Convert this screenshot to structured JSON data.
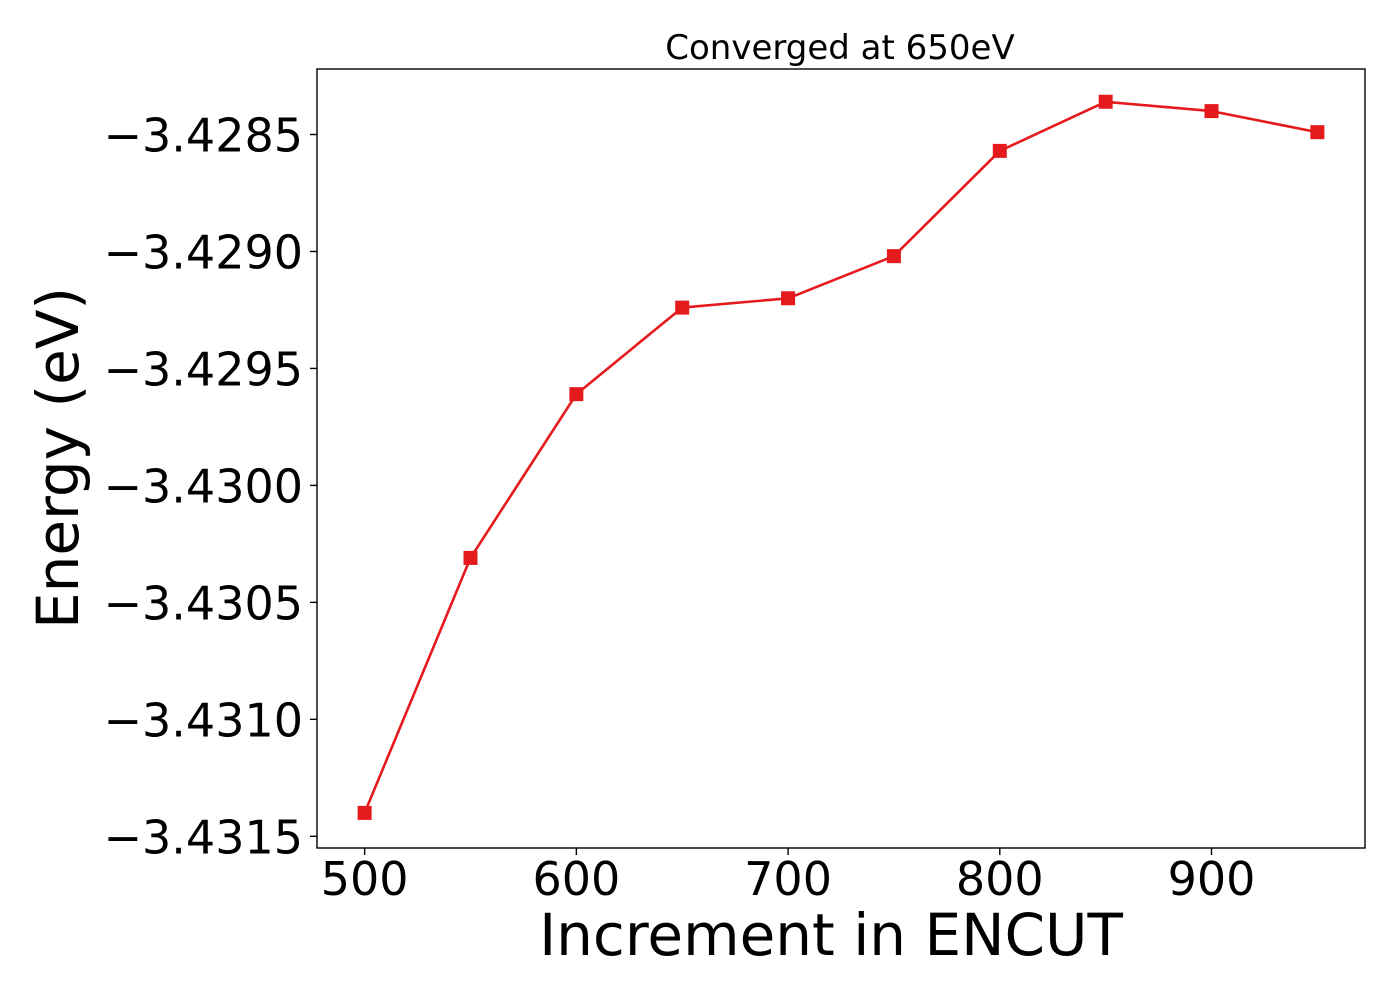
{
  "chart_data": {
    "type": "line",
    "title": "Converged at 650eV",
    "xlabel": "Increment in ENCUT",
    "ylabel": "Energy (eV)",
    "xlim": [
      477.5,
      972.5
    ],
    "ylim": [
      -3.43155,
      -3.42822
    ],
    "x_ticks": [
      500,
      600,
      700,
      800,
      900
    ],
    "x_tick_labels": [
      "500",
      "600",
      "700",
      "800",
      "900"
    ],
    "y_ticks": [
      -3.4315,
      -3.431,
      -3.4305,
      -3.43,
      -3.4295,
      -3.429,
      -3.4285
    ],
    "y_tick_labels": [
      "−3.4315",
      "−3.4310",
      "−3.4305",
      "−3.4300",
      "−3.4295",
      "−3.4290",
      "−3.4285"
    ],
    "grid": false,
    "legend": "none",
    "series": [
      {
        "color": "#e41a1c",
        "marker": "square",
        "x": [
          500,
          550,
          600,
          650,
          700,
          750,
          800,
          850,
          900,
          950
        ],
        "y": [
          -3.4314,
          -3.43031,
          -3.42961,
          -3.42924,
          -3.4292,
          -3.42902,
          -3.42857,
          -3.42836,
          -3.4284,
          -3.42849
        ]
      }
    ]
  }
}
